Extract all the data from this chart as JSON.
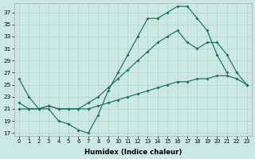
{
  "background_color": "#cce8e4",
  "grid_color": "#b0d4cf",
  "line_color": "#1a7060",
  "xlabel": "Humidex (Indice chaleur)",
  "xlim": [
    -0.5,
    23.5
  ],
  "ylim": [
    16.5,
    38.5
  ],
  "xticks": [
    0,
    1,
    2,
    3,
    4,
    5,
    6,
    7,
    8,
    9,
    10,
    11,
    12,
    13,
    14,
    15,
    16,
    17,
    18,
    19,
    20,
    21,
    22,
    23
  ],
  "yticks": [
    17,
    19,
    21,
    23,
    25,
    27,
    29,
    31,
    33,
    35,
    37
  ],
  "curve1_x": [
    0,
    1,
    2,
    3,
    4,
    5,
    6,
    7,
    8,
    9,
    10,
    11,
    12,
    13,
    14,
    15,
    16,
    17,
    18,
    19,
    20,
    21
  ],
  "curve1_y": [
    26,
    23,
    21,
    21,
    19,
    18.5,
    17.5,
    17,
    20,
    24,
    27,
    30,
    33,
    36,
    36,
    37,
    38,
    38,
    36,
    34,
    30,
    27
  ],
  "curve2_x": [
    0,
    1,
    2,
    3,
    4,
    5,
    6,
    7,
    8,
    9,
    10,
    11,
    12,
    13,
    14,
    15,
    16,
    17,
    18,
    19,
    20,
    21,
    22,
    23
  ],
  "curve2_y": [
    22,
    21,
    21,
    21.5,
    21,
    21,
    21,
    22,
    23,
    24.5,
    26,
    27.5,
    29,
    30.5,
    32,
    33,
    34,
    32,
    31,
    32,
    32,
    30,
    27,
    25
  ],
  "curve3_x": [
    0,
    1,
    2,
    3,
    4,
    5,
    6,
    7,
    8,
    9,
    10,
    11,
    12,
    13,
    14,
    15,
    16,
    17,
    18,
    19,
    20,
    21,
    22,
    23
  ],
  "curve3_y": [
    21,
    21,
    21,
    21.5,
    21,
    21,
    21,
    21,
    21.5,
    22,
    22.5,
    23,
    23.5,
    24,
    24.5,
    25,
    25.5,
    25.5,
    26,
    26,
    26.5,
    26.5,
    26,
    25
  ]
}
